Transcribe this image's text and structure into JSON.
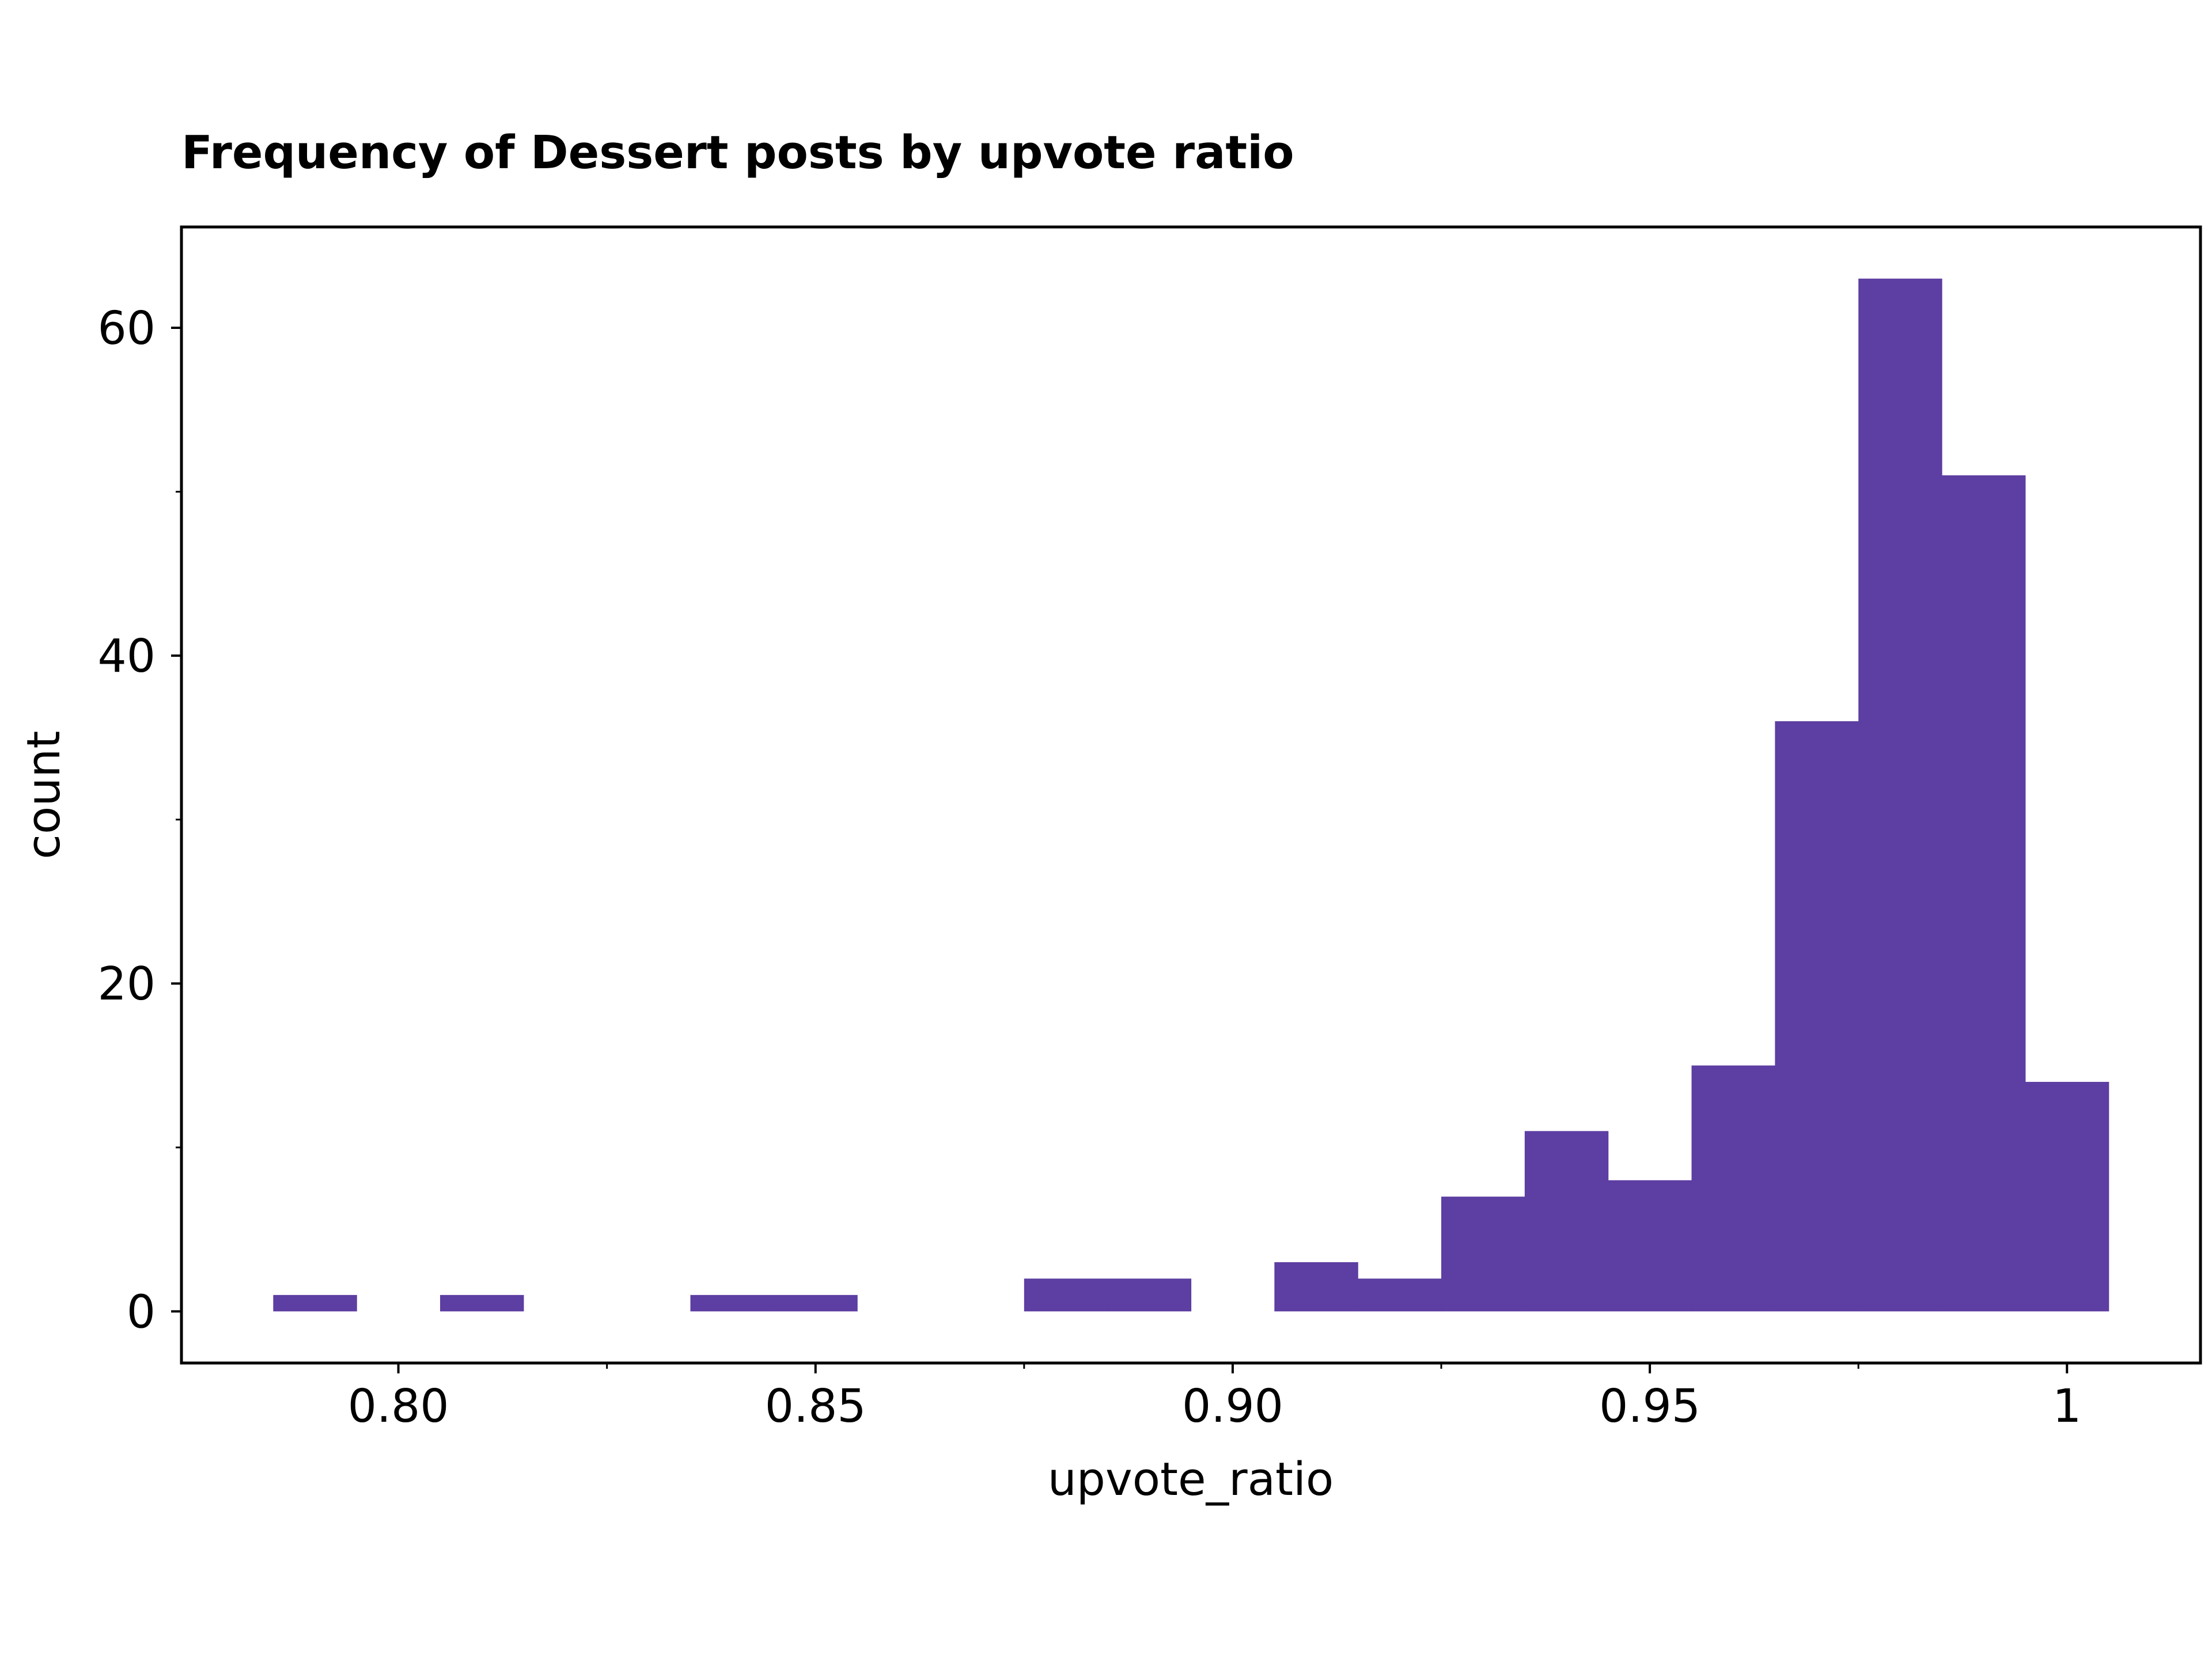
{
  "colors": {
    "bar": "#5d3ea2",
    "axis": "#000000",
    "background": "#ffffff"
  },
  "chart_data": {
    "type": "bar",
    "title": "Frequency of Dessert posts by upvote ratio",
    "xlabel": "upvote_ratio",
    "ylabel": "count",
    "xlim": [
      0.774,
      1.016
    ],
    "ylim": [
      -3.15,
      66.15
    ],
    "grid": false,
    "legend": "none",
    "bin_width": 0.01,
    "x_ticks": [
      {
        "value": 0.8,
        "label": "0.80"
      },
      {
        "value": 0.85,
        "label": "0.85"
      },
      {
        "value": 0.9,
        "label": "0.90"
      },
      {
        "value": 0.95,
        "label": "0.95"
      },
      {
        "value": 1.0,
        "label": "1"
      }
    ],
    "x_minor_ticks": [
      0.825,
      0.875,
      0.925,
      0.975
    ],
    "y_ticks": [
      {
        "value": 0,
        "label": "0"
      },
      {
        "value": 20,
        "label": "20"
      },
      {
        "value": 40,
        "label": "40"
      },
      {
        "value": 60,
        "label": "60"
      }
    ],
    "y_minor_ticks": [
      10,
      30,
      50
    ],
    "bins": [
      {
        "x": 0.79,
        "count": 1
      },
      {
        "x": 0.81,
        "count": 1
      },
      {
        "x": 0.84,
        "count": 1
      },
      {
        "x": 0.85,
        "count": 1
      },
      {
        "x": 0.88,
        "count": 2
      },
      {
        "x": 0.89,
        "count": 2
      },
      {
        "x": 0.91,
        "count": 3
      },
      {
        "x": 0.92,
        "count": 2
      },
      {
        "x": 0.93,
        "count": 7
      },
      {
        "x": 0.94,
        "count": 11
      },
      {
        "x": 0.95,
        "count": 8
      },
      {
        "x": 0.96,
        "count": 15
      },
      {
        "x": 0.97,
        "count": 36
      },
      {
        "x": 0.98,
        "count": 63
      },
      {
        "x": 0.99,
        "count": 51
      },
      {
        "x": 1.0,
        "count": 14
      }
    ]
  }
}
